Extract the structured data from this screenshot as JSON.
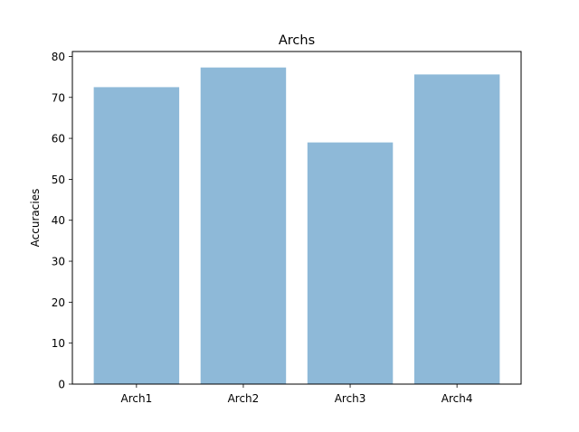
{
  "chart_data": {
    "type": "bar",
    "title": "Archs",
    "xlabel": "",
    "ylabel": "Accuracies",
    "categories": [
      "Arch1",
      "Arch2",
      "Arch3",
      "Arch4"
    ],
    "values": [
      72.5,
      77.3,
      59.0,
      75.6
    ],
    "ylim": [
      0,
      81.2
    ],
    "yticks": [
      0,
      10,
      20,
      30,
      40,
      50,
      60,
      70,
      80
    ],
    "bar_color": "#8eb9d8",
    "grid": false,
    "legend": "none"
  }
}
